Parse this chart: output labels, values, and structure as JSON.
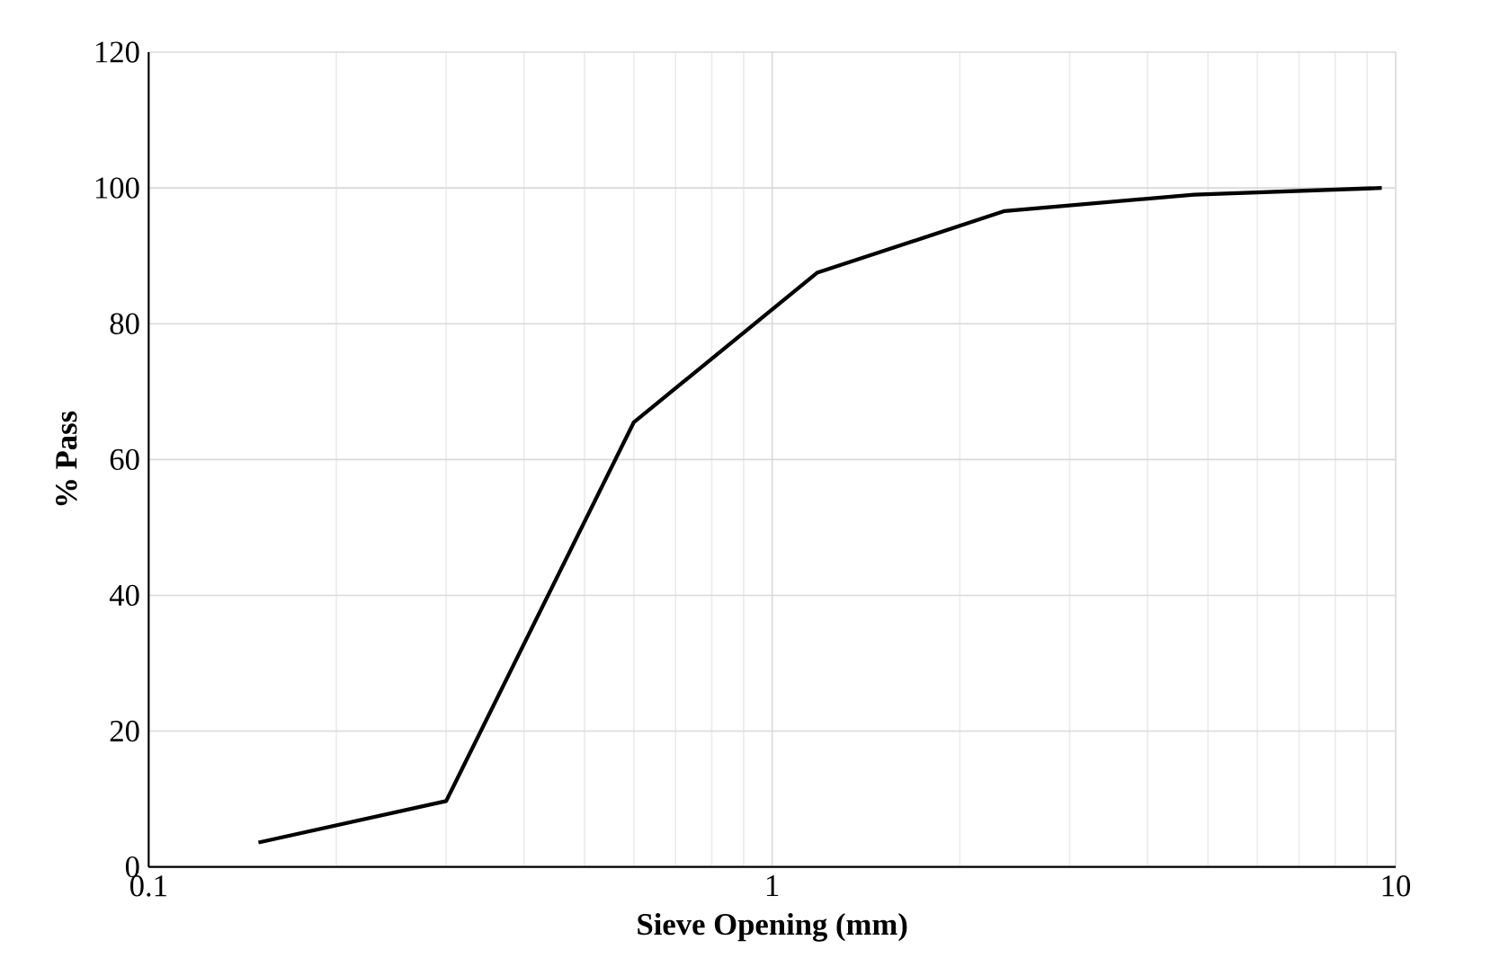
{
  "chart_data": {
    "type": "line",
    "xlabel": "Sieve Opening (mm)",
    "ylabel": "% Pass",
    "log": "x",
    "x": [
      0.15,
      0.3,
      0.6,
      1.18,
      2.36,
      4.75,
      9.5
    ],
    "series": [
      {
        "color": "#000000",
        "values": [
          3.6,
          9.7,
          65.5,
          87.5,
          96.6,
          99.0,
          100
        ]
      }
    ],
    "xlim": [
      0.1,
      10
    ],
    "xticks": [
      0.1,
      1,
      10
    ],
    "ylim": [
      0,
      120
    ],
    "yticks": [
      0,
      20,
      40,
      60,
      80,
      100,
      120
    ],
    "grid": true,
    "marker": "none",
    "line_style": "solid"
  }
}
